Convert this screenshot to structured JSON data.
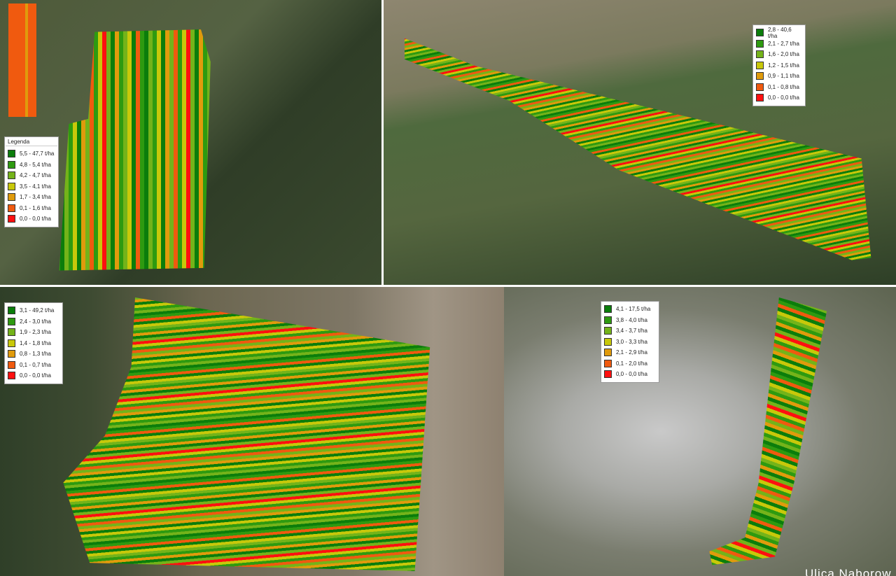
{
  "palette": [
    "#0b7d0b",
    "#2e9a10",
    "#74b31a",
    "#c8c80a",
    "#e09b0c",
    "#f05a0f",
    "#ff1010"
  ],
  "maps": [
    {
      "legend": {
        "title": "Legenda",
        "items": [
          "5,5 - 47,7 t/ha",
          "4,8 - 5,4 t/ha",
          "4,2 - 4,7 t/ha",
          "3,5 - 4,1 t/ha",
          "1,7 - 3,4 t/ha",
          "0,1 - 1,6 t/ha",
          "0,0 - 0,0 t/ha"
        ]
      }
    },
    {
      "legend": {
        "items": [
          "2,8 - 40,6 t/ha",
          "2,1 - 2,7 t/ha",
          "1,6 - 2,0 t/ha",
          "1,2 - 1,5 t/ha",
          "0,9 - 1,1 t/ha",
          "0,1 - 0,8 t/ha",
          "0,0 - 0,0 t/ha"
        ]
      }
    },
    {
      "legend": {
        "items": [
          "3,1 - 49,2 t/ha",
          "2,4 - 3,0 t/ha",
          "1,9 - 2,3 t/ha",
          "1,4 - 1,8 t/ha",
          "0,8 - 1,3 t/ha",
          "0,1 - 0,7 t/ha",
          "0,0 - 0,0 t/ha"
        ]
      }
    },
    {
      "legend": {
        "items": [
          "4,1 - 17,5 t/ha",
          "3,8 - 4,0 t/ha",
          "3,4 - 3,7 t/ha",
          "3,0 - 3,3 t/ha",
          "2,1 - 2,9 t/ha",
          "0,1 - 2,0 t/ha",
          "0,0 - 0,0 t/ha"
        ]
      },
      "road_label": "Ulica Naborow"
    }
  ]
}
